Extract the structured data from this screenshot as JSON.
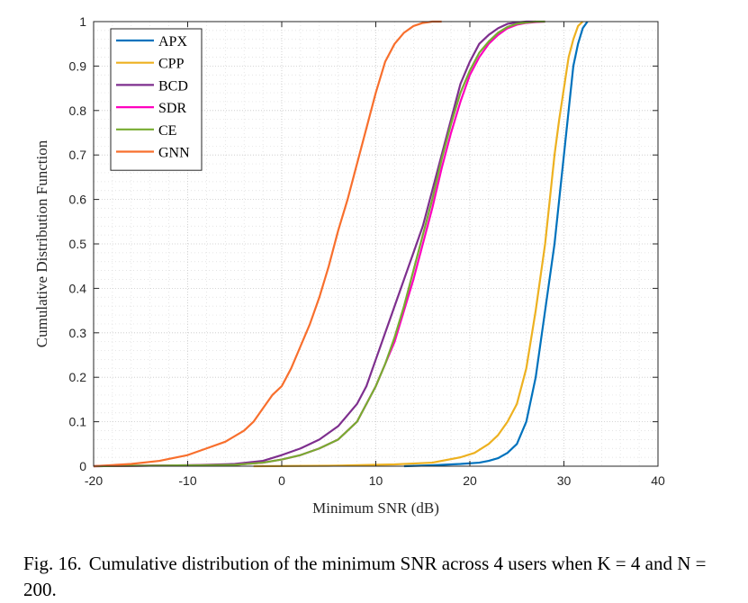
{
  "chart_data": {
    "type": "line",
    "xlabel": "Minimum SNR (dB)",
    "ylabel": "Cumulative Distribution Function",
    "xlim": [
      -20,
      40
    ],
    "ylim": [
      0,
      1
    ],
    "xticks": [
      "-20",
      "-10",
      "0",
      "10",
      "20",
      "30",
      "40"
    ],
    "yticks": [
      "0",
      "0.1",
      "0.2",
      "0.3",
      "0.4",
      "0.5",
      "0.6",
      "0.7",
      "0.8",
      "0.9",
      "1"
    ],
    "grid": true,
    "minor_grid": true,
    "legend_position": "top-left",
    "series": [
      {
        "name": "APX",
        "color": "#0072BD",
        "x": [
          13,
          16,
          19,
          21,
          22,
          23,
          24,
          25,
          26,
          27,
          28,
          29,
          29.5,
          30,
          30.5,
          31,
          31.5,
          32,
          32.5
        ],
        "y": [
          0,
          0.002,
          0.005,
          0.008,
          0.012,
          0.018,
          0.03,
          0.05,
          0.1,
          0.2,
          0.35,
          0.5,
          0.6,
          0.7,
          0.8,
          0.9,
          0.95,
          0.985,
          1.0
        ]
      },
      {
        "name": "CPP",
        "color": "#EDB120",
        "x": [
          -3,
          5,
          12,
          16,
          19,
          20.5,
          22,
          23,
          24,
          25,
          26,
          27,
          28,
          28.5,
          29,
          29.5,
          30,
          30.5,
          31,
          31.5,
          32
        ],
        "y": [
          0,
          0.001,
          0.004,
          0.008,
          0.02,
          0.03,
          0.05,
          0.07,
          0.1,
          0.14,
          0.22,
          0.35,
          0.5,
          0.6,
          0.7,
          0.78,
          0.85,
          0.92,
          0.96,
          0.99,
          1.0
        ]
      },
      {
        "name": "BCD",
        "color": "#7E2F8E",
        "x": [
          -20,
          -10,
          -5,
          -2,
          0,
          2,
          4,
          6,
          8,
          9,
          10,
          11,
          12,
          13,
          14,
          15,
          16,
          17,
          18,
          19,
          20,
          21,
          22,
          23,
          24,
          25,
          26,
          27
        ],
        "y": [
          0,
          0.002,
          0.005,
          0.012,
          0.025,
          0.04,
          0.06,
          0.09,
          0.14,
          0.18,
          0.24,
          0.3,
          0.36,
          0.42,
          0.48,
          0.54,
          0.62,
          0.7,
          0.78,
          0.86,
          0.91,
          0.95,
          0.97,
          0.985,
          0.995,
          0.998,
          1.0,
          1.0
        ]
      },
      {
        "name": "SDR",
        "color": "#FF00BF",
        "x": [
          -20,
          -5,
          -2,
          0,
          2,
          4,
          6,
          8,
          10,
          11,
          12,
          13,
          14,
          15,
          16,
          17,
          18,
          19,
          20,
          21,
          22,
          23,
          24,
          25,
          26,
          27,
          28
        ],
        "y": [
          0,
          0.003,
          0.008,
          0.015,
          0.025,
          0.04,
          0.06,
          0.1,
          0.18,
          0.23,
          0.28,
          0.35,
          0.42,
          0.5,
          0.58,
          0.67,
          0.75,
          0.82,
          0.88,
          0.92,
          0.95,
          0.97,
          0.985,
          0.993,
          0.997,
          0.999,
          1.0
        ]
      },
      {
        "name": "CE",
        "color": "#77AC30",
        "x": [
          -20,
          -5,
          -2,
          0,
          2,
          4,
          6,
          8,
          10,
          11,
          12,
          13,
          14,
          15,
          16,
          17,
          18,
          19,
          20,
          21,
          22,
          23,
          24,
          25,
          26,
          27,
          28
        ],
        "y": [
          0,
          0.003,
          0.008,
          0.015,
          0.025,
          0.04,
          0.06,
          0.1,
          0.18,
          0.23,
          0.29,
          0.36,
          0.44,
          0.52,
          0.6,
          0.69,
          0.77,
          0.84,
          0.89,
          0.93,
          0.955,
          0.975,
          0.988,
          0.995,
          0.998,
          1.0,
          1.0
        ]
      },
      {
        "name": "GNN",
        "color": "#F86F2D",
        "x": [
          -20,
          -16,
          -13,
          -10,
          -8,
          -6,
          -4,
          -3,
          -2,
          -1,
          0,
          1,
          2,
          3,
          4,
          5,
          6,
          7,
          8,
          9,
          10,
          11,
          12,
          13,
          14,
          15,
          16,
          17
        ],
        "y": [
          0,
          0.005,
          0.012,
          0.025,
          0.04,
          0.055,
          0.08,
          0.1,
          0.13,
          0.16,
          0.18,
          0.22,
          0.27,
          0.32,
          0.38,
          0.45,
          0.53,
          0.6,
          0.68,
          0.76,
          0.84,
          0.91,
          0.95,
          0.975,
          0.99,
          0.997,
          1.0,
          1.0
        ]
      }
    ]
  },
  "caption": {
    "label": "Fig. 16.",
    "text": "Cumulative distribution of the minimum SNR across 4 users when K = 4 and N = 200."
  }
}
